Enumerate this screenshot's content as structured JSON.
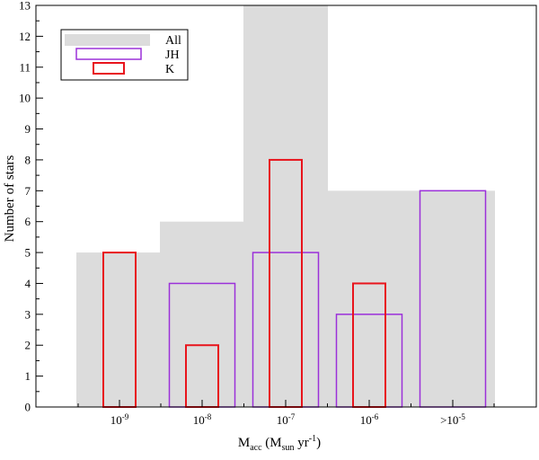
{
  "chart_data": {
    "type": "bar",
    "categories": [
      "10^-9",
      "10^-8",
      "10^-7",
      "10^-6",
      ">10^-5"
    ],
    "category_labels": [
      {
        "base": "10",
        "exp": "-9"
      },
      {
        "base": "10",
        "exp": "-8"
      },
      {
        "base": "10",
        "exp": "-7"
      },
      {
        "base": "10",
        "exp": "-6"
      },
      {
        "base": ">10",
        "exp": "-5"
      }
    ],
    "series": [
      {
        "name": "All",
        "values": [
          5,
          6,
          13,
          7,
          7
        ],
        "color": "#dcdcdc",
        "style": "filled"
      },
      {
        "name": "JH",
        "values": [
          0,
          4,
          5,
          3,
          7
        ],
        "color": "#9b30d9",
        "style": "outline"
      },
      {
        "name": "K",
        "values": [
          5,
          2,
          8,
          4,
          0
        ],
        "color": "#e8141c",
        "style": "outline"
      }
    ],
    "ylim": [
      0,
      13
    ],
    "yticks": [
      0,
      1,
      2,
      3,
      4,
      5,
      6,
      7,
      8,
      9,
      10,
      11,
      12,
      13
    ],
    "ylabel": "Number of stars",
    "xlabel": {
      "main": "M",
      "sub": "acc",
      "paren_open": " (M",
      "sub2": "sun",
      "unit": " yr",
      "sup": "-1",
      "paren_close": ")"
    },
    "grid": false,
    "legend_position": "top-left"
  }
}
